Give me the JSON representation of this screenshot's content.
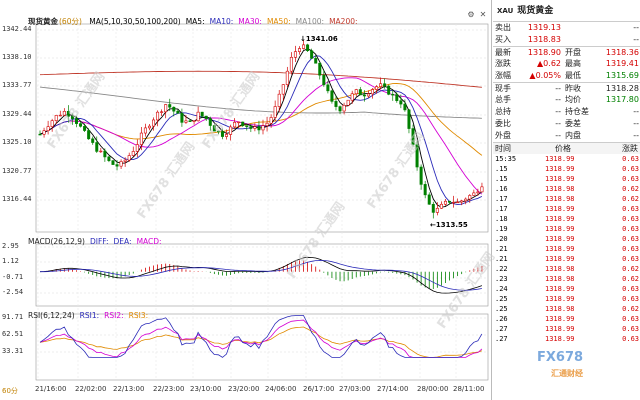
{
  "chart": {
    "symbol_header": "现货黄金",
    "period_header": "(60分)",
    "ma_header": [
      {
        "label": "MA(5,10,30,50,100,200)",
        "color": "#000000"
      },
      {
        "label": "MA5:",
        "color": "#000000"
      },
      {
        "label": "MA10:",
        "color": "#2a2ab8"
      },
      {
        "label": "MA30:",
        "color": "#d400d4"
      },
      {
        "label": "MA50:",
        "color": "#e08a00"
      },
      {
        "label": "MA100:",
        "color": "#888888"
      },
      {
        "label": "MA200:",
        "color": "#c0392b"
      }
    ],
    "macd_header": {
      "label": "MACD(26,12,9)",
      "diff": "DIFF:",
      "dea": "DEA:",
      "macd": "MACD:"
    },
    "rsi_header": {
      "label": "RSI(6,12,24)",
      "rsi1": "RSI1:",
      "rsi2": "RSI2:",
      "rsi3": "RSI3:"
    },
    "price_ticks": [
      "1342.44",
      "1338.10",
      "1333.77",
      "1329.44",
      "1325.10",
      "1320.77",
      "1316.44"
    ],
    "macd_ticks": [
      "2.95",
      "1.12",
      "-0.71",
      "-2.54"
    ],
    "rsi_ticks": [
      "91.71",
      "62.51",
      "33.31"
    ],
    "x_ticks": [
      "21/16:00",
      "22/02:00",
      "22/13:00",
      "22/23:00",
      "23/10:00",
      "23/20:00",
      "24/06:00",
      "26/17:00",
      "27/03:00",
      "27/14:00",
      "28/00:00",
      "28/11:00"
    ],
    "annotations": {
      "high": "1341.06",
      "low": "1313.55"
    },
    "period_tag": "60分",
    "watermark": "FX678 汇通网",
    "colors": {
      "up": "#d40000",
      "down": "#008000",
      "ma5": "#000000",
      "ma10": "#2a2ab8",
      "ma30": "#d400d4",
      "ma50": "#e08a00",
      "ma100": "#888888",
      "ma200": "#c0392b"
    }
  },
  "chart_data": {
    "type": "candlestick",
    "title": "现货黄金 (60分)",
    "price_range": [
      1313.55,
      1342.44
    ],
    "high": 1341.06,
    "low": 1313.55,
    "close_path": [
      1326.5,
      1328.0,
      1329.2,
      1330.0,
      1329.4,
      1327.8,
      1326.0,
      1324.5,
      1323.2,
      1322.0,
      1321.6,
      1322.8,
      1324.4,
      1326.6,
      1328.4,
      1329.8,
      1331.2,
      1330.0,
      1328.6,
      1328.2,
      1329.6,
      1329.0,
      1327.4,
      1326.4,
      1327.2,
      1328.6,
      1328.0,
      1327.2,
      1327.6,
      1328.4,
      1331.0,
      1334.8,
      1338.6,
      1340.2,
      1339.0,
      1336.8,
      1334.2,
      1331.2,
      1330.4,
      1331.8,
      1333.0,
      1332.6,
      1333.4,
      1334.0,
      1333.2,
      1332.0,
      1331.2,
      1326.0,
      1320.4,
      1316.2,
      1314.6,
      1315.6,
      1316.4,
      1316.0,
      1316.8,
      1317.4,
      1318.9
    ],
    "macd_range": [
      -2.54,
      2.95
    ],
    "rsi_range": [
      33.31,
      91.71
    ]
  },
  "panel": {
    "code": "XAU",
    "title": "现货黄金",
    "quote_rows": [
      {
        "lbl": "卖出",
        "val": "1319.13",
        "vcls": "red",
        "lbl2": "",
        "val2": "--",
        "v2cls": ""
      },
      {
        "lbl": "买入",
        "val": "1318.83",
        "vcls": "red",
        "lbl2": "",
        "val2": "--",
        "v2cls": ""
      },
      {
        "lbl": "最新",
        "val": "1318.90",
        "vcls": "red",
        "lbl2": "开盘",
        "val2": "1318.36",
        "v2cls": "red"
      },
      {
        "lbl": "涨跌",
        "val": "▲0.62",
        "vcls": "red",
        "lbl2": "最高",
        "val2": "1319.41",
        "v2cls": "red"
      },
      {
        "lbl": "涨幅",
        "val": "▲0.05%",
        "vcls": "red",
        "lbl2": "最低",
        "val2": "1315.69",
        "v2cls": "green"
      },
      {
        "lbl": "现手",
        "val": "--",
        "vcls": "",
        "lbl2": "昨收",
        "val2": "1318.28",
        "v2cls": ""
      },
      {
        "lbl": "总手",
        "val": "--",
        "vcls": "",
        "lbl2": "均价",
        "val2": "1317.80",
        "v2cls": "green"
      },
      {
        "lbl": "总持",
        "val": "--",
        "vcls": "",
        "lbl2": "持仓差",
        "val2": "--",
        "v2cls": ""
      },
      {
        "lbl": "委比",
        "val": "--",
        "vcls": "",
        "lbl2": "委差",
        "val2": "--",
        "v2cls": ""
      },
      {
        "lbl": "外盘",
        "val": "--",
        "vcls": "",
        "lbl2": "内盘",
        "val2": "--",
        "v2cls": ""
      }
    ],
    "ticks_header": {
      "time": "时间",
      "price": "价格",
      "change": "涨跌"
    },
    "ticks": [
      {
        "t": "15:35",
        "p": "1318.99",
        "c": "0.63"
      },
      {
        "t": ".15",
        "p": "1318.99",
        "c": "0.63"
      },
      {
        "t": ".15",
        "p": "1318.99",
        "c": "0.63"
      },
      {
        "t": ".16",
        "p": "1318.98",
        "c": "0.62"
      },
      {
        "t": ".17",
        "p": "1318.98",
        "c": "0.62"
      },
      {
        "t": ".17",
        "p": "1318.99",
        "c": "0.63"
      },
      {
        "t": ".18",
        "p": "1318.99",
        "c": "0.63"
      },
      {
        "t": ".19",
        "p": "1318.99",
        "c": "0.63"
      },
      {
        "t": ".20",
        "p": "1318.99",
        "c": "0.63"
      },
      {
        "t": ".21",
        "p": "1318.99",
        "c": "0.63"
      },
      {
        "t": ".21",
        "p": "1318.99",
        "c": "0.63"
      },
      {
        "t": ".22",
        "p": "1318.98",
        "c": "0.62"
      },
      {
        "t": ".23",
        "p": "1318.98",
        "c": "0.62"
      },
      {
        "t": ".24",
        "p": "1318.99",
        "c": "0.63"
      },
      {
        "t": ".25",
        "p": "1318.99",
        "c": "0.63"
      },
      {
        "t": ".25",
        "p": "1318.98",
        "c": "0.62"
      },
      {
        "t": ".26",
        "p": "1318.99",
        "c": "0.63"
      },
      {
        "t": ".27",
        "p": "1318.99",
        "c": "0.63"
      },
      {
        "t": ".27",
        "p": "1318.99",
        "c": "0.63"
      }
    ],
    "logo": "FX678",
    "logo_sub": "汇通财经"
  }
}
